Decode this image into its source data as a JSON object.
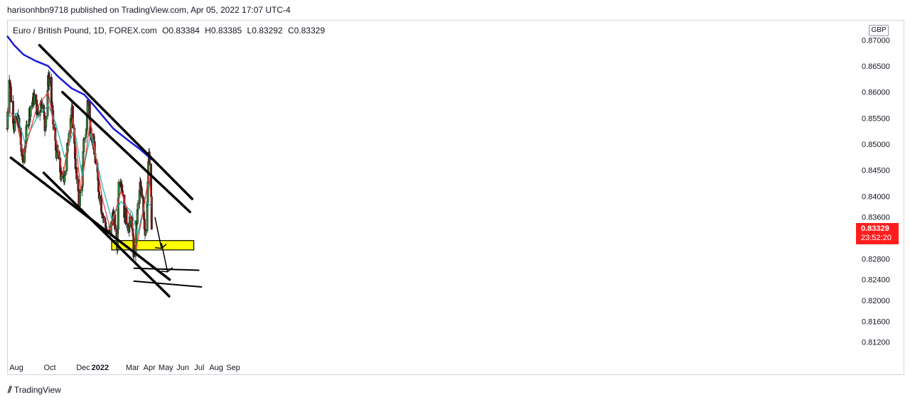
{
  "header": {
    "published": "harisonhbn9718 published on TradingView.com, Apr 05, 2022 17:07 UTC-4"
  },
  "legend": {
    "symbol": "Euro / British Pound, 1D, FOREX.com",
    "open": "O0.83384",
    "high": "H0.83385",
    "low": "L0.83292",
    "close": "C0.83329"
  },
  "currency": "GBP",
  "last_price": {
    "value": "0.83329",
    "countdown": "23:52:20",
    "color": "#ff1e1e"
  },
  "brand": {
    "logo": "𝟭𝟳",
    "name": "TradingView"
  },
  "chart_data": {
    "type": "candlestick",
    "x_ticks": [
      "Aug",
      "Oct",
      "Dec",
      "2022",
      "Mar",
      "Apr",
      "May",
      "Jun",
      "Jul",
      "Aug",
      "Sep"
    ],
    "y_ticks": [
      "0.87000",
      "0.86500",
      "0.86000",
      "0.85500",
      "0.85000",
      "0.84500",
      "0.84000",
      "0.83600",
      "0.83200",
      "0.82800",
      "0.82400",
      "0.82000",
      "0.81600",
      "0.81200"
    ],
    "ylim": [
      0.8094,
      0.8725
    ],
    "grid": false,
    "close_path": [
      [
        "2021-07-15",
        0.853
      ],
      [
        "2021-07-18",
        0.865
      ],
      [
        "2021-07-22",
        0.859
      ],
      [
        "2021-07-28",
        0.8535
      ],
      [
        "2021-08-04",
        0.855
      ],
      [
        "2021-08-09",
        0.8495
      ],
      [
        "2021-08-13",
        0.8465
      ],
      [
        "2021-08-20",
        0.853
      ],
      [
        "2021-08-27",
        0.8575
      ],
      [
        "2021-09-03",
        0.859
      ],
      [
        "2021-09-10",
        0.8555
      ],
      [
        "2021-09-17",
        0.859
      ],
      [
        "2021-09-22",
        0.853
      ],
      [
        "2021-09-28",
        0.862
      ],
      [
        "2021-10-01",
        0.863
      ],
      [
        "2021-10-06",
        0.855
      ],
      [
        "2021-10-12",
        0.849
      ],
      [
        "2021-10-18",
        0.847
      ],
      [
        "2021-10-22",
        0.843
      ],
      [
        "2021-10-27",
        0.844
      ],
      [
        "2021-11-01",
        0.8475
      ],
      [
        "2021-11-06",
        0.855
      ],
      [
        "2021-11-11",
        0.856
      ],
      [
        "2021-11-15",
        0.8495
      ],
      [
        "2021-11-19",
        0.843
      ],
      [
        "2021-11-23",
        0.8385
      ],
      [
        "2021-11-29",
        0.843
      ],
      [
        "2021-12-03",
        0.852
      ],
      [
        "2021-12-07",
        0.8525
      ],
      [
        "2021-12-09",
        0.859
      ],
      [
        "2021-12-14",
        0.853
      ],
      [
        "2021-12-20",
        0.85
      ],
      [
        "2021-12-25",
        0.845
      ],
      [
        "2021-12-31",
        0.84
      ],
      [
        "2022-01-05",
        0.837
      ],
      [
        "2022-01-10",
        0.8345
      ],
      [
        "2022-01-14",
        0.833
      ],
      [
        "2022-01-19",
        0.8325
      ],
      [
        "2022-01-24",
        0.837
      ],
      [
        "2022-01-28",
        0.8345
      ],
      [
        "2022-02-01",
        0.83
      ],
      [
        "2022-02-04",
        0.844
      ],
      [
        "2022-02-09",
        0.843
      ],
      [
        "2022-02-14",
        0.837
      ],
      [
        "2022-02-18",
        0.8355
      ],
      [
        "2022-02-23",
        0.834
      ],
      [
        "2022-02-27",
        0.837
      ],
      [
        "2022-03-02",
        0.831
      ],
      [
        "2022-03-05",
        0.826
      ],
      [
        "2022-03-08",
        0.834
      ],
      [
        "2022-03-11",
        0.838
      ],
      [
        "2022-03-15",
        0.842
      ],
      [
        "2022-03-18",
        0.84
      ],
      [
        "2022-03-21",
        0.838
      ],
      [
        "2022-03-24",
        0.833
      ],
      [
        "2022-03-27",
        0.837
      ],
      [
        "2022-03-31",
        0.8485
      ],
      [
        "2022-04-01",
        0.845
      ],
      [
        "2022-04-04",
        0.84
      ],
      [
        "2022-04-05",
        0.83329
      ]
    ],
    "ma_series": [
      {
        "color": "#1a1adc",
        "points": [
          [
            "2021-07-15",
            0.8708
          ],
          [
            "2021-07-28",
            0.869
          ],
          [
            "2021-08-14",
            0.8672
          ],
          [
            "2021-09-05",
            0.866
          ],
          [
            "2021-09-28",
            0.865
          ],
          [
            "2021-10-16",
            0.863
          ],
          [
            "2021-11-10",
            0.8607
          ],
          [
            "2021-12-03",
            0.8595
          ],
          [
            "2021-12-20",
            0.8575
          ],
          [
            "2022-01-05",
            0.8555
          ],
          [
            "2022-01-25",
            0.853
          ],
          [
            "2022-02-18",
            0.851
          ],
          [
            "2022-03-15",
            0.849
          ],
          [
            "2022-04-06",
            0.847
          ]
        ]
      },
      {
        "color": "#21b3a8",
        "points": [
          [
            "2021-07-15",
            0.855
          ],
          [
            "2021-08-01",
            0.856
          ],
          [
            "2021-08-16",
            0.8505
          ],
          [
            "2021-09-07",
            0.855
          ],
          [
            "2021-09-28",
            0.8575
          ],
          [
            "2021-10-12",
            0.854
          ],
          [
            "2021-10-28",
            0.8475
          ],
          [
            "2021-11-15",
            0.853
          ],
          [
            "2021-11-29",
            0.844
          ],
          [
            "2021-12-15",
            0.852
          ],
          [
            "2022-01-05",
            0.842
          ],
          [
            "2022-01-22",
            0.8355
          ],
          [
            "2022-02-08",
            0.839
          ],
          [
            "2022-02-28",
            0.837
          ],
          [
            "2022-03-10",
            0.8325
          ],
          [
            "2022-03-24",
            0.839
          ],
          [
            "2022-04-05",
            0.838
          ]
        ]
      },
      {
        "color": "#e53935",
        "points": [
          [
            "2021-07-15",
            0.857
          ],
          [
            "2021-08-01",
            0.8545
          ],
          [
            "2021-08-14",
            0.848
          ],
          [
            "2021-09-07",
            0.857
          ],
          [
            "2021-09-28",
            0.86
          ],
          [
            "2021-10-12",
            0.851
          ],
          [
            "2021-10-25",
            0.844
          ],
          [
            "2021-11-12",
            0.855
          ],
          [
            "2021-11-27",
            0.841
          ],
          [
            "2021-12-14",
            0.8545
          ],
          [
            "2022-01-05",
            0.8395
          ],
          [
            "2022-01-20",
            0.8335
          ],
          [
            "2022-02-08",
            0.841
          ],
          [
            "2022-02-28",
            0.835
          ],
          [
            "2022-03-08",
            0.83
          ],
          [
            "2022-03-22",
            0.838
          ],
          [
            "2022-03-31",
            0.844
          ],
          [
            "2022-04-05",
            0.8385
          ]
        ]
      }
    ],
    "trendlines": [
      {
        "from": [
          "2021-09-12",
          0.869
        ],
        "to": [
          "2022-06-18",
          0.8395
        ]
      },
      {
        "from": [
          "2021-10-24",
          0.86
        ],
        "to": [
          "2022-06-14",
          0.837
        ]
      },
      {
        "from": [
          "2021-07-22",
          0.8474
        ],
        "to": [
          "2022-05-08",
          0.824
        ]
      },
      {
        "from": [
          "2021-09-20",
          0.8445
        ],
        "to": [
          "2022-05-07",
          0.8208
        ]
      },
      {
        "from": [
          "2022-03-04",
          0.8262
        ],
        "to": [
          "2022-06-30",
          0.8258
        ]
      },
      {
        "from": [
          "2022-03-04",
          0.8237
        ],
        "to": [
          "2022-07-05",
          0.8226
        ]
      }
    ],
    "zones": [
      {
        "from": [
          "2022-01-22",
          0.8315
        ],
        "to": [
          "2022-06-21",
          0.8297
        ],
        "color": "#ffff00"
      }
    ],
    "arrows": [
      {
        "from": [
          "2022-04-11",
          0.836
        ],
        "to": [
          "2022-04-23",
          0.83
        ]
      },
      {
        "from": [
          "2022-04-23",
          0.831
        ],
        "to": [
          "2022-05-04",
          0.8255
        ]
      }
    ]
  }
}
